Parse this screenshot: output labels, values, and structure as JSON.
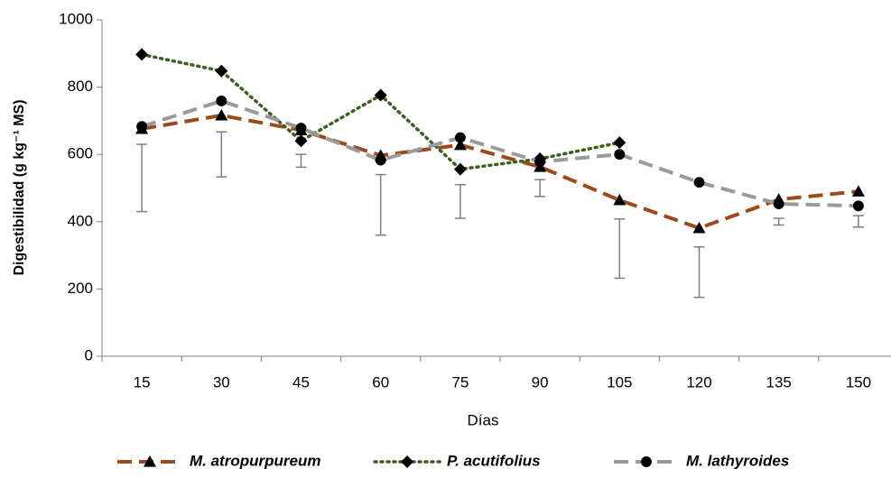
{
  "chart_data": {
    "type": "line",
    "x_label": "Días",
    "y_label": "Digestibilidad (g kg⁻¹ MS)",
    "categories": [
      "15",
      "30",
      "45",
      "60",
      "75",
      "90",
      "105",
      "120",
      "135",
      "150"
    ],
    "ylim": [
      0,
      1000
    ],
    "yticks": [
      0,
      200,
      400,
      600,
      800,
      1000
    ],
    "series": [
      {
        "name": "M. atropurpureum",
        "color": "#9c4a1c",
        "marker": "triangle",
        "line_style": "dashed",
        "values": [
          676,
          716,
          672,
          597,
          628,
          563,
          464,
          381,
          466,
          490
        ]
      },
      {
        "name": "P. acutifolius",
        "color": "#3b6020",
        "marker": "diamond",
        "line_style": "dotted",
        "values": [
          897,
          848,
          640,
          776,
          556,
          587,
          635,
          null,
          null,
          null
        ]
      },
      {
        "name": "M. lathyroides",
        "color": "#9a9a9a",
        "marker": "circle",
        "line_style": "dashed",
        "values": [
          683,
          759,
          678,
          583,
          650,
          578,
          600,
          517,
          453,
          447
        ]
      }
    ],
    "error_bars": {
      "color": "#7f7f7f",
      "values": [
        530,
        600,
        581,
        450,
        460,
        500,
        320,
        250,
        400,
        401
      ],
      "errors": [
        100,
        67,
        19,
        90,
        50,
        25,
        88,
        75,
        10,
        17
      ]
    },
    "legend": "bottom"
  }
}
